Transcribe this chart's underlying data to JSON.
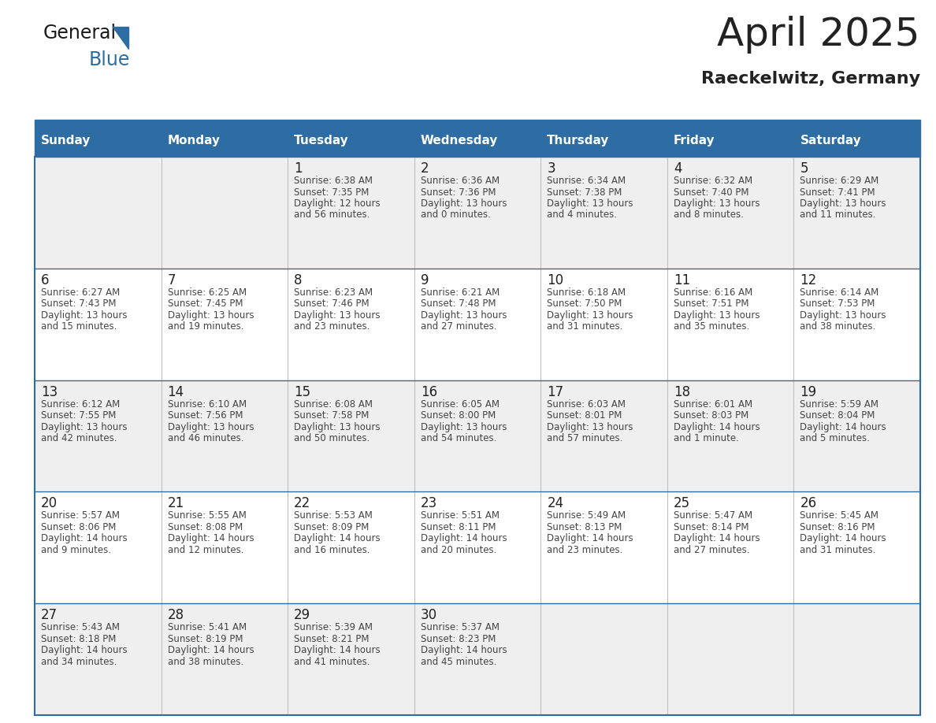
{
  "title": "April 2025",
  "subtitle": "Raeckelwitz, Germany",
  "days_of_week": [
    "Sunday",
    "Monday",
    "Tuesday",
    "Wednesday",
    "Thursday",
    "Friday",
    "Saturday"
  ],
  "header_bg": "#2E6DA4",
  "header_text": "#FFFFFF",
  "cell_bg_odd": "#EFEFEF",
  "cell_bg_even": "#FFFFFF",
  "border_color": "#2E6DA4",
  "divider_color": "#BBBBBB",
  "title_color": "#222222",
  "day_num_color": "#222222",
  "info_text_color": "#444444",
  "logo_text_color": "#1a1a1a",
  "logo_blue_color": "#2E6DA4",
  "title_fontsize": 36,
  "subtitle_fontsize": 16,
  "dow_fontsize": 11,
  "day_num_fontsize": 12,
  "info_fontsize": 8.5,
  "weeks": [
    [
      {
        "day": "",
        "info": ""
      },
      {
        "day": "",
        "info": ""
      },
      {
        "day": "1",
        "info": "Sunrise: 6:38 AM\nSunset: 7:35 PM\nDaylight: 12 hours\nand 56 minutes."
      },
      {
        "day": "2",
        "info": "Sunrise: 6:36 AM\nSunset: 7:36 PM\nDaylight: 13 hours\nand 0 minutes."
      },
      {
        "day": "3",
        "info": "Sunrise: 6:34 AM\nSunset: 7:38 PM\nDaylight: 13 hours\nand 4 minutes."
      },
      {
        "day": "4",
        "info": "Sunrise: 6:32 AM\nSunset: 7:40 PM\nDaylight: 13 hours\nand 8 minutes."
      },
      {
        "day": "5",
        "info": "Sunrise: 6:29 AM\nSunset: 7:41 PM\nDaylight: 13 hours\nand 11 minutes."
      }
    ],
    [
      {
        "day": "6",
        "info": "Sunrise: 6:27 AM\nSunset: 7:43 PM\nDaylight: 13 hours\nand 15 minutes."
      },
      {
        "day": "7",
        "info": "Sunrise: 6:25 AM\nSunset: 7:45 PM\nDaylight: 13 hours\nand 19 minutes."
      },
      {
        "day": "8",
        "info": "Sunrise: 6:23 AM\nSunset: 7:46 PM\nDaylight: 13 hours\nand 23 minutes."
      },
      {
        "day": "9",
        "info": "Sunrise: 6:21 AM\nSunset: 7:48 PM\nDaylight: 13 hours\nand 27 minutes."
      },
      {
        "day": "10",
        "info": "Sunrise: 6:18 AM\nSunset: 7:50 PM\nDaylight: 13 hours\nand 31 minutes."
      },
      {
        "day": "11",
        "info": "Sunrise: 6:16 AM\nSunset: 7:51 PM\nDaylight: 13 hours\nand 35 minutes."
      },
      {
        "day": "12",
        "info": "Sunrise: 6:14 AM\nSunset: 7:53 PM\nDaylight: 13 hours\nand 38 minutes."
      }
    ],
    [
      {
        "day": "13",
        "info": "Sunrise: 6:12 AM\nSunset: 7:55 PM\nDaylight: 13 hours\nand 42 minutes."
      },
      {
        "day": "14",
        "info": "Sunrise: 6:10 AM\nSunset: 7:56 PM\nDaylight: 13 hours\nand 46 minutes."
      },
      {
        "day": "15",
        "info": "Sunrise: 6:08 AM\nSunset: 7:58 PM\nDaylight: 13 hours\nand 50 minutes."
      },
      {
        "day": "16",
        "info": "Sunrise: 6:05 AM\nSunset: 8:00 PM\nDaylight: 13 hours\nand 54 minutes."
      },
      {
        "day": "17",
        "info": "Sunrise: 6:03 AM\nSunset: 8:01 PM\nDaylight: 13 hours\nand 57 minutes."
      },
      {
        "day": "18",
        "info": "Sunrise: 6:01 AM\nSunset: 8:03 PM\nDaylight: 14 hours\nand 1 minute."
      },
      {
        "day": "19",
        "info": "Sunrise: 5:59 AM\nSunset: 8:04 PM\nDaylight: 14 hours\nand 5 minutes."
      }
    ],
    [
      {
        "day": "20",
        "info": "Sunrise: 5:57 AM\nSunset: 8:06 PM\nDaylight: 14 hours\nand 9 minutes."
      },
      {
        "day": "21",
        "info": "Sunrise: 5:55 AM\nSunset: 8:08 PM\nDaylight: 14 hours\nand 12 minutes."
      },
      {
        "day": "22",
        "info": "Sunrise: 5:53 AM\nSunset: 8:09 PM\nDaylight: 14 hours\nand 16 minutes."
      },
      {
        "day": "23",
        "info": "Sunrise: 5:51 AM\nSunset: 8:11 PM\nDaylight: 14 hours\nand 20 minutes."
      },
      {
        "day": "24",
        "info": "Sunrise: 5:49 AM\nSunset: 8:13 PM\nDaylight: 14 hours\nand 23 minutes."
      },
      {
        "day": "25",
        "info": "Sunrise: 5:47 AM\nSunset: 8:14 PM\nDaylight: 14 hours\nand 27 minutes."
      },
      {
        "day": "26",
        "info": "Sunrise: 5:45 AM\nSunset: 8:16 PM\nDaylight: 14 hours\nand 31 minutes."
      }
    ],
    [
      {
        "day": "27",
        "info": "Sunrise: 5:43 AM\nSunset: 8:18 PM\nDaylight: 14 hours\nand 34 minutes."
      },
      {
        "day": "28",
        "info": "Sunrise: 5:41 AM\nSunset: 8:19 PM\nDaylight: 14 hours\nand 38 minutes."
      },
      {
        "day": "29",
        "info": "Sunrise: 5:39 AM\nSunset: 8:21 PM\nDaylight: 14 hours\nand 41 minutes."
      },
      {
        "day": "30",
        "info": "Sunrise: 5:37 AM\nSunset: 8:23 PM\nDaylight: 14 hours\nand 45 minutes."
      },
      {
        "day": "",
        "info": ""
      },
      {
        "day": "",
        "info": ""
      },
      {
        "day": "",
        "info": ""
      }
    ]
  ]
}
